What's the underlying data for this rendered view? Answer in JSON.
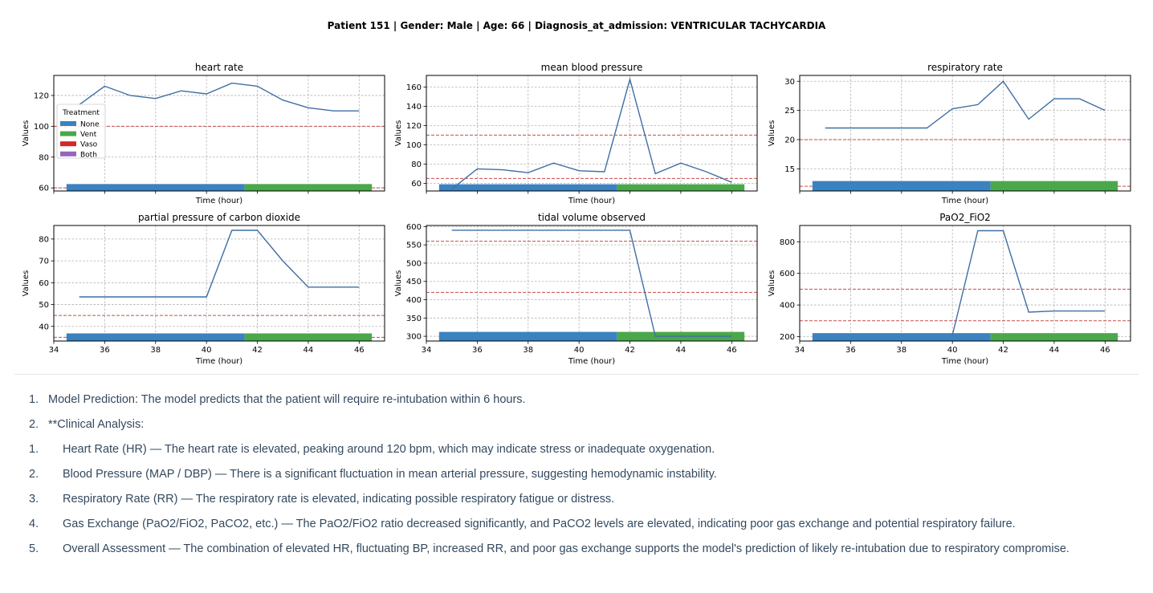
{
  "figure": {
    "suptitle": "Patient 151 | Gender: Male | Age: 66 | Diagnosis_at_admission: VENTRICULAR TACHYCARDIA"
  },
  "colors": {
    "line": "#3f6ea5",
    "threshold": "#c94a4a",
    "grid": "#b0b0b0",
    "none": "#3a82c0",
    "vent": "#4aa84a",
    "vaso": "#d62728",
    "both": "#9467bd"
  },
  "legend": {
    "title": "Treatment",
    "items": [
      {
        "label": "None",
        "color": "#3a82c0"
      },
      {
        "label": "Vent",
        "color": "#4aa84a"
      },
      {
        "label": "Vaso",
        "color": "#d62728"
      },
      {
        "label": "Both",
        "color": "#9467bd"
      }
    ]
  },
  "chart_data": [
    {
      "type": "line",
      "title": "heart rate",
      "xlabel": "Time (hour)",
      "ylabel": "Values",
      "xlim": [
        34,
        47
      ],
      "ylim": [
        58,
        133
      ],
      "yticks": [
        60,
        80,
        100,
        120
      ],
      "xticks": [],
      "grid": true,
      "legend": "left",
      "x": [
        35,
        36,
        37,
        38,
        39,
        40,
        41,
        42,
        43,
        44,
        45,
        46
      ],
      "y": [
        114,
        126,
        120,
        118,
        123,
        121,
        128,
        126,
        117,
        112,
        110,
        110
      ],
      "thresholds": [
        60,
        100
      ],
      "treatment": [
        {
          "start": 34.5,
          "end": 41.5,
          "type": "None"
        },
        {
          "start": 41.5,
          "end": 46.5,
          "type": "Vent"
        }
      ],
      "band": [
        58,
        62.5
      ]
    },
    {
      "type": "line",
      "title": "mean blood pressure",
      "xlabel": "Time (hour)",
      "ylabel": "Values",
      "xlim": [
        34,
        47
      ],
      "ylim": [
        52,
        172
      ],
      "yticks": [
        60,
        80,
        100,
        120,
        140,
        160
      ],
      "xticks": [],
      "grid": true,
      "x": [
        35,
        36,
        37,
        38,
        39,
        40,
        41,
        42,
        43,
        44,
        45,
        46
      ],
      "y": [
        54,
        75,
        74,
        71,
        81,
        73,
        72,
        168,
        70,
        81,
        72,
        61
      ],
      "thresholds": [
        65,
        110
      ],
      "treatment": [
        {
          "start": 34.5,
          "end": 41.5,
          "type": "None"
        },
        {
          "start": 41.5,
          "end": 46.5,
          "type": "Vent"
        }
      ],
      "band": [
        52,
        59
      ]
    },
    {
      "type": "line",
      "title": "respiratory rate",
      "xlabel": "Time (hour)",
      "ylabel": "Values",
      "xlim": [
        34,
        47
      ],
      "ylim": [
        11.2,
        31
      ],
      "yticks": [
        15,
        20,
        25,
        30
      ],
      "xticks": [],
      "grid": true,
      "x": [
        35,
        36,
        37,
        38,
        39,
        40,
        41,
        42,
        43,
        44,
        45,
        46
      ],
      "y": [
        22,
        22,
        22,
        22,
        22,
        25.3,
        26,
        30,
        23.5,
        27,
        27,
        25
      ],
      "thresholds": [
        12,
        20
      ],
      "treatment": [
        {
          "start": 34.5,
          "end": 41.5,
          "type": "None"
        },
        {
          "start": 41.5,
          "end": 46.5,
          "type": "Vent"
        }
      ],
      "band": [
        11.2,
        12.9
      ]
    },
    {
      "type": "line",
      "title": "partial pressure of carbon dioxide",
      "xlabel": "Time (hour)",
      "ylabel": "Values",
      "xlim": [
        34,
        47
      ],
      "ylim": [
        33.3,
        86.2
      ],
      "yticks": [
        40,
        50,
        60,
        70,
        80
      ],
      "xticks": [
        34,
        36,
        38,
        40,
        42,
        44,
        46
      ],
      "grid": true,
      "x": [
        35,
        40,
        41,
        42,
        43,
        44,
        46
      ],
      "y": [
        53.5,
        53.5,
        84,
        84,
        70,
        58,
        58
      ],
      "thresholds": [
        35,
        45
      ],
      "treatment": [
        {
          "start": 34.5,
          "end": 41.5,
          "type": "None"
        },
        {
          "start": 41.5,
          "end": 46.5,
          "type": "Vent"
        }
      ],
      "band": [
        33.3,
        36.8
      ]
    },
    {
      "type": "line",
      "title": "tidal volume observed",
      "xlabel": "Time (hour)",
      "ylabel": "Values",
      "xlim": [
        34,
        47
      ],
      "ylim": [
        287,
        603
      ],
      "yticks": [
        300,
        350,
        400,
        450,
        500,
        550,
        600
      ],
      "xticks": [
        34,
        36,
        38,
        40,
        42,
        44,
        46
      ],
      "grid": true,
      "x": [
        35,
        42,
        43,
        46
      ],
      "y": [
        590,
        590,
        300,
        300
      ],
      "thresholds": [
        420,
        560
      ],
      "treatment": [
        {
          "start": 34.5,
          "end": 41.5,
          "type": "None"
        },
        {
          "start": 41.5,
          "end": 46.5,
          "type": "Vent"
        }
      ],
      "band": [
        287,
        312
      ]
    },
    {
      "type": "line",
      "title": "PaO2_FiO2",
      "xlabel": "Time (hour)",
      "ylabel": "Values",
      "xlim": [
        34,
        47
      ],
      "ylim": [
        172,
        903
      ],
      "yticks": [
        200,
        400,
        600,
        800
      ],
      "xticks": [
        34,
        36,
        38,
        40,
        42,
        44,
        46
      ],
      "grid": true,
      "x": [
        40,
        41,
        42,
        43,
        44,
        46
      ],
      "y": [
        210,
        870,
        870,
        355,
        362,
        362
      ],
      "thresholds": [
        300,
        500
      ],
      "treatment": [
        {
          "start": 34.5,
          "end": 41.5,
          "type": "None"
        },
        {
          "start": 41.5,
          "end": 46.5,
          "type": "Vent"
        }
      ],
      "band": [
        172,
        222
      ]
    }
  ],
  "analysis": [
    {
      "num": "1.",
      "text": "Model Prediction: The model predicts that the patient will require re-intubation within 6 hours."
    },
    {
      "num": "2.",
      "text": "**Clinical Analysis:"
    },
    {
      "num": "1.",
      "text": "Heart Rate (HR) — The heart rate is elevated, peaking around 120 bpm, which may indicate stress or inadequate oxygenation."
    },
    {
      "num": "2.",
      "text": "Blood Pressure (MAP / DBP) — There is a significant fluctuation in mean arterial pressure, suggesting hemodynamic instability."
    },
    {
      "num": "3.",
      "text": "Respiratory Rate (RR) — The respiratory rate is elevated, indicating possible respiratory fatigue or distress."
    },
    {
      "num": "4.",
      "text": "Gas Exchange (PaO2/FiO2, PaCO2, etc.) — The PaO2/FiO2 ratio decreased significantly, and PaCO2 levels are elevated, indicating poor gas exchange and potential respiratory failure."
    },
    {
      "num": "5.",
      "text": "Overall Assessment — The combination of elevated HR, fluctuating BP, increased RR, and poor gas exchange supports the model's prediction of likely re-intubation due to respiratory compromise."
    }
  ]
}
